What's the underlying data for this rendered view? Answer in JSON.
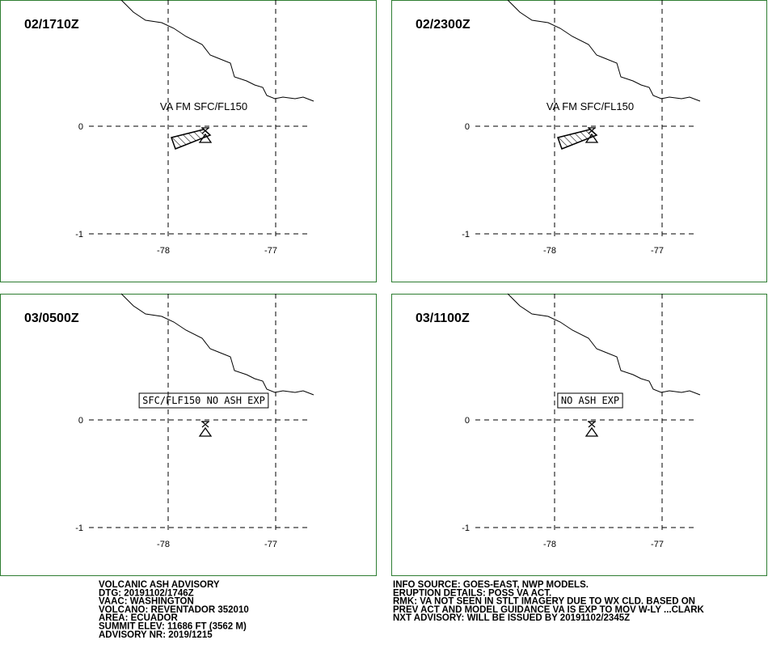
{
  "panels": [
    {
      "time": "02/1710Z",
      "label": "VA FM SFC/FL150",
      "ash": true
    },
    {
      "time": "02/2300Z",
      "label": "VA FM SFC/FL150",
      "ash": true
    },
    {
      "time": "03/0500Z",
      "boxed_label": "SFC/FLF150 NO ASH EXP",
      "ash": false
    },
    {
      "time": "03/1100Z",
      "boxed_label": "NO ASH EXP",
      "ash": false
    }
  ],
  "lat_labels": [
    "0",
    "-1"
  ],
  "lon_labels": [
    "-78",
    "-77"
  ],
  "advisory": {
    "left": [
      "VOLCANIC ASH ADVISORY",
      "DTG: 20191102/1746Z",
      "VAAC: WASHINGTON",
      "VOLCANO: REVENTADOR 352010",
      "AREA: ECUADOR",
      "SUMMIT ELEV: 11686 FT (3562 M)",
      "ADVISORY NR: 2019/1215"
    ],
    "right": [
      "INFO SOURCE: GOES-EAST, NWP MODELS.",
      "ERUPTION DETAILS: POSS VA ACT.",
      "RMK: VA NOT SEEN IN STLT IMAGERY DUE TO WX CLD. BASED ON",
      "PREV ACT AND MODEL GUIDANCE VA IS EXP TO MOV W-LY ...CLARK",
      "NXT ADVISORY: WILL BE ISSUED BY 20191102/2345Z"
    ]
  }
}
